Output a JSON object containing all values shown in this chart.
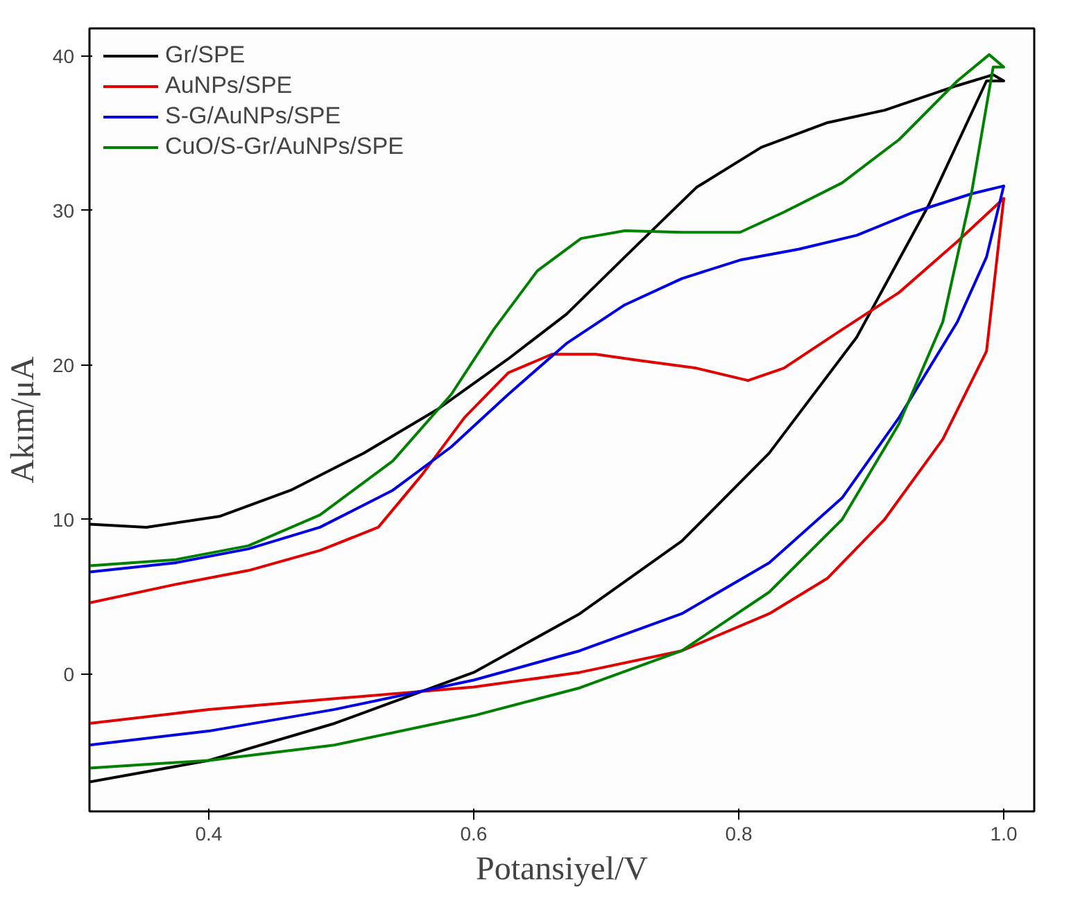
{
  "chart_data": {
    "type": "line",
    "xlabel": "Potansiyel/V",
    "ylabel": "Akım/μA",
    "xlim": [
      0.31,
      1.023
    ],
    "ylim": [
      -8.9,
      41.8
    ],
    "xticks": [
      0.4,
      0.6,
      0.8,
      {
        "value": 1.0,
        "label": "1.0"
      }
    ],
    "yticks": [
      0,
      10,
      20,
      30,
      40
    ],
    "grid": false,
    "legend": "top left",
    "line_style": "solid",
    "marker": "none",
    "series": [
      {
        "name": "Gr/SPE",
        "color": "#000000",
        "x": [
          0.31,
          0.4,
          0.495,
          0.6,
          0.68,
          0.757,
          0.823,
          0.889,
          0.943,
          0.987,
          1.0,
          0.992,
          0.965,
          0.91,
          0.867,
          0.817,
          0.768,
          0.714,
          0.67,
          0.626,
          0.572,
          0.517,
          0.462,
          0.408,
          0.353,
          0.31
        ],
        "values": [
          -7.0,
          -5.6,
          -3.2,
          0.1,
          3.9,
          8.6,
          14.3,
          21.8,
          30.3,
          38.4,
          38.4,
          38.8,
          38.1,
          36.5,
          35.7,
          34.1,
          31.5,
          27.0,
          23.3,
          20.4,
          17.1,
          14.3,
          11.9,
          10.2,
          9.5,
          9.7
        ]
      },
      {
        "name": "AuNPs/SPE",
        "color": "#e00000",
        "x": [
          0.31,
          0.4,
          0.495,
          0.6,
          0.68,
          0.757,
          0.823,
          0.867,
          0.91,
          0.954,
          0.987,
          1.0,
          0.965,
          0.921,
          0.878,
          0.834,
          0.807,
          0.768,
          0.725,
          0.692,
          0.659,
          0.626,
          0.593,
          0.561,
          0.528,
          0.484,
          0.43,
          0.375,
          0.31
        ],
        "values": [
          -3.2,
          -2.3,
          -1.6,
          -0.85,
          0.1,
          1.5,
          3.9,
          6.2,
          10.0,
          15.2,
          20.9,
          30.8,
          28.0,
          24.7,
          22.3,
          19.8,
          19.0,
          19.8,
          20.3,
          20.7,
          20.7,
          19.5,
          16.6,
          12.9,
          9.5,
          8.0,
          6.7,
          5.8,
          4.6
        ]
      },
      {
        "name": "S-G/AuNPs/SPE",
        "color": "#0000e0",
        "x": [
          0.31,
          0.4,
          0.495,
          0.6,
          0.68,
          0.757,
          0.823,
          0.878,
          0.921,
          0.965,
          0.987,
          1.0,
          0.976,
          0.932,
          0.889,
          0.845,
          0.801,
          0.757,
          0.714,
          0.67,
          0.626,
          0.583,
          0.539,
          0.484,
          0.43,
          0.375,
          0.31
        ],
        "values": [
          -4.6,
          -3.7,
          -2.3,
          -0.4,
          1.5,
          3.9,
          7.2,
          11.4,
          16.6,
          22.8,
          27.0,
          31.6,
          31.1,
          29.9,
          28.4,
          27.5,
          26.8,
          25.6,
          23.9,
          21.4,
          18.1,
          14.7,
          11.9,
          9.5,
          8.1,
          7.2,
          6.6
        ]
      },
      {
        "name": "CuO/S-Gr/AuNPs/SPE",
        "color": "#008000",
        "x": [
          0.31,
          0.4,
          0.495,
          0.6,
          0.68,
          0.757,
          0.823,
          0.878,
          0.921,
          0.954,
          0.976,
          0.992,
          1.0,
          0.989,
          0.965,
          0.921,
          0.878,
          0.834,
          0.801,
          0.757,
          0.714,
          0.681,
          0.648,
          0.615,
          0.583,
          0.539,
          0.484,
          0.43,
          0.375,
          0.31
        ],
        "values": [
          -6.1,
          -5.6,
          -4.6,
          -2.7,
          -0.9,
          1.5,
          5.3,
          10.0,
          16.2,
          22.8,
          31.3,
          39.3,
          39.3,
          40.1,
          38.4,
          34.6,
          31.8,
          29.9,
          28.6,
          28.6,
          28.7,
          28.2,
          26.1,
          22.3,
          18.1,
          13.8,
          10.3,
          8.3,
          7.4,
          7.0
        ]
      }
    ]
  }
}
